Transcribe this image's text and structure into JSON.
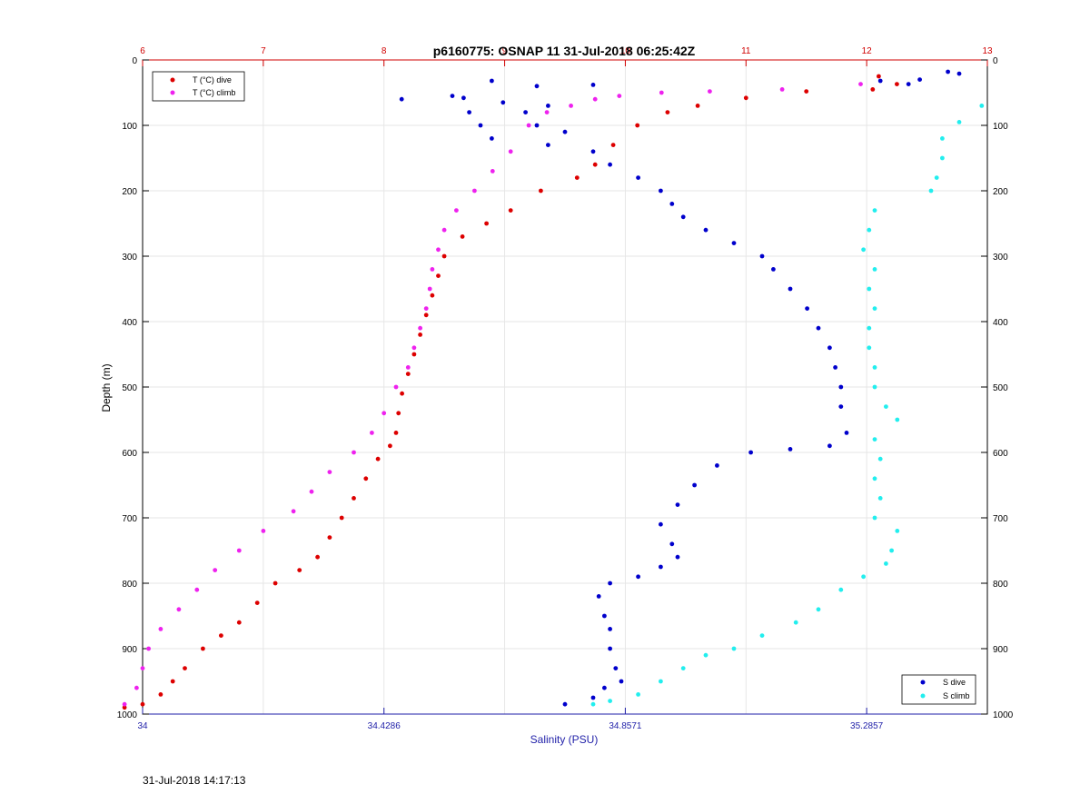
{
  "figure": {
    "timestamp": "31-Jul-2018 14:17:13"
  },
  "chart_data": {
    "type": "scatter",
    "title": "p6160775: OSNAP 11 31-Jul-2018 06:25:42Z",
    "ylabel": "Depth (m)",
    "xlabel_bottom": "Salinity (PSU)",
    "ylim": [
      0,
      1000
    ],
    "y_reversed": true,
    "y_ticks": [
      "0",
      "100",
      "200",
      "300",
      "400",
      "500",
      "600",
      "700",
      "800",
      "900",
      "1000"
    ],
    "x_bottom": {
      "lim": [
        34,
        35.5
      ],
      "ticks": [
        34,
        34.4286,
        34.8571,
        35.2857
      ],
      "tick_labels": [
        "34",
        "34.4286",
        "34.8571",
        "35.2857"
      ],
      "color": "#1f1fa8"
    },
    "x_top": {
      "lim": [
        6,
        13
      ],
      "ticks": [
        6,
        7,
        8,
        9,
        10,
        11,
        12,
        13
      ],
      "tick_labels": [
        "6",
        "7",
        "8",
        "9",
        "10",
        "11",
        "12",
        "13"
      ],
      "color": "#d00000"
    },
    "grid": true,
    "legend_top": {
      "placement": "top-left",
      "entries": [
        {
          "label": "T (°C) dive",
          "color": "#dd0000"
        },
        {
          "label": "T (°C) climb",
          "color": "#ee22ee"
        }
      ]
    },
    "legend_bottom": {
      "placement": "bottom-right",
      "entries": [
        {
          "label": "S dive",
          "color": "#0000cc"
        },
        {
          "label": "S climb",
          "color": "#22eeee"
        }
      ]
    },
    "series": [
      {
        "name": "T (°C) dive",
        "axis": "top",
        "color": "#dd0000",
        "points": [
          [
            12.25,
            37
          ],
          [
            12.1,
            25
          ],
          [
            12.05,
            45
          ],
          [
            11.5,
            48
          ],
          [
            11.0,
            58
          ],
          [
            10.6,
            70
          ],
          [
            10.35,
            80
          ],
          [
            10.1,
            100
          ],
          [
            9.9,
            130
          ],
          [
            9.75,
            160
          ],
          [
            9.6,
            180
          ],
          [
            9.3,
            200
          ],
          [
            9.05,
            230
          ],
          [
            8.85,
            250
          ],
          [
            8.65,
            270
          ],
          [
            8.5,
            300
          ],
          [
            8.45,
            330
          ],
          [
            8.4,
            360
          ],
          [
            8.35,
            390
          ],
          [
            8.3,
            420
          ],
          [
            8.25,
            450
          ],
          [
            8.2,
            480
          ],
          [
            8.15,
            510
          ],
          [
            8.12,
            540
          ],
          [
            8.1,
            570
          ],
          [
            8.05,
            590
          ],
          [
            7.95,
            610
          ],
          [
            7.85,
            640
          ],
          [
            7.75,
            670
          ],
          [
            7.65,
            700
          ],
          [
            7.55,
            730
          ],
          [
            7.45,
            760
          ],
          [
            7.3,
            780
          ],
          [
            7.1,
            800
          ],
          [
            6.95,
            830
          ],
          [
            6.8,
            860
          ],
          [
            6.65,
            880
          ],
          [
            6.5,
            900
          ],
          [
            6.35,
            930
          ],
          [
            6.25,
            950
          ],
          [
            6.15,
            970
          ],
          [
            6.0,
            985
          ],
          [
            5.85,
            990
          ]
        ]
      },
      {
        "name": "T (°C) climb",
        "axis": "top",
        "color": "#ee22ee",
        "points": [
          [
            11.95,
            37
          ],
          [
            11.3,
            45
          ],
          [
            10.7,
            48
          ],
          [
            10.3,
            50
          ],
          [
            9.95,
            55
          ],
          [
            9.75,
            60
          ],
          [
            9.55,
            70
          ],
          [
            9.35,
            80
          ],
          [
            9.2,
            100
          ],
          [
            9.05,
            140
          ],
          [
            8.9,
            170
          ],
          [
            8.75,
            200
          ],
          [
            8.6,
            230
          ],
          [
            8.5,
            260
          ],
          [
            8.45,
            290
          ],
          [
            8.4,
            320
          ],
          [
            8.38,
            350
          ],
          [
            8.35,
            380
          ],
          [
            8.3,
            410
          ],
          [
            8.25,
            440
          ],
          [
            8.2,
            470
          ],
          [
            8.1,
            500
          ],
          [
            8.0,
            540
          ],
          [
            7.9,
            570
          ],
          [
            7.75,
            600
          ],
          [
            7.55,
            630
          ],
          [
            7.4,
            660
          ],
          [
            7.25,
            690
          ],
          [
            7.0,
            720
          ],
          [
            6.8,
            750
          ],
          [
            6.6,
            780
          ],
          [
            6.45,
            810
          ],
          [
            6.3,
            840
          ],
          [
            6.15,
            870
          ],
          [
            6.05,
            900
          ],
          [
            6.0,
            930
          ],
          [
            5.95,
            960
          ],
          [
            5.85,
            985
          ]
        ]
      },
      {
        "name": "S dive",
        "axis": "bottom",
        "color": "#0000cc",
        "points": [
          [
            35.43,
            18
          ],
          [
            35.45,
            21
          ],
          [
            35.38,
            30
          ],
          [
            35.31,
            32
          ],
          [
            35.36,
            37
          ],
          [
            34.62,
            32
          ],
          [
            34.7,
            40
          ],
          [
            34.8,
            38
          ],
          [
            34.46,
            60
          ],
          [
            34.55,
            55
          ],
          [
            34.57,
            58
          ],
          [
            34.64,
            65
          ],
          [
            34.58,
            80
          ],
          [
            34.68,
            80
          ],
          [
            34.72,
            70
          ],
          [
            34.6,
            100
          ],
          [
            34.7,
            100
          ],
          [
            34.75,
            110
          ],
          [
            34.62,
            120
          ],
          [
            34.72,
            130
          ],
          [
            34.8,
            140
          ],
          [
            34.83,
            160
          ],
          [
            34.88,
            180
          ],
          [
            34.92,
            200
          ],
          [
            34.94,
            220
          ],
          [
            34.96,
            240
          ],
          [
            35.0,
            260
          ],
          [
            35.05,
            280
          ],
          [
            35.1,
            300
          ],
          [
            35.12,
            320
          ],
          [
            35.15,
            350
          ],
          [
            35.18,
            380
          ],
          [
            35.2,
            410
          ],
          [
            35.22,
            440
          ],
          [
            35.23,
            470
          ],
          [
            35.24,
            500
          ],
          [
            35.24,
            530
          ],
          [
            35.25,
            570
          ],
          [
            35.22,
            590
          ],
          [
            35.15,
            595
          ],
          [
            35.08,
            600
          ],
          [
            35.02,
            620
          ],
          [
            34.98,
            650
          ],
          [
            34.95,
            680
          ],
          [
            34.92,
            710
          ],
          [
            34.94,
            740
          ],
          [
            34.95,
            760
          ],
          [
            34.92,
            775
          ],
          [
            34.88,
            790
          ],
          [
            34.83,
            800
          ],
          [
            34.81,
            820
          ],
          [
            34.82,
            850
          ],
          [
            34.83,
            870
          ],
          [
            34.83,
            900
          ],
          [
            34.84,
            930
          ],
          [
            34.85,
            950
          ],
          [
            34.82,
            960
          ],
          [
            34.8,
            975
          ],
          [
            34.75,
            985
          ]
        ]
      },
      {
        "name": "S climb",
        "axis": "bottom",
        "color": "#22eeee",
        "points": [
          [
            35.49,
            70
          ],
          [
            35.45,
            95
          ],
          [
            35.42,
            120
          ],
          [
            35.42,
            150
          ],
          [
            35.41,
            180
          ],
          [
            35.4,
            200
          ],
          [
            35.3,
            230
          ],
          [
            35.29,
            260
          ],
          [
            35.28,
            290
          ],
          [
            35.3,
            320
          ],
          [
            35.29,
            350
          ],
          [
            35.3,
            380
          ],
          [
            35.29,
            410
          ],
          [
            35.29,
            440
          ],
          [
            35.3,
            470
          ],
          [
            35.3,
            500
          ],
          [
            35.32,
            530
          ],
          [
            35.34,
            550
          ],
          [
            35.3,
            580
          ],
          [
            35.31,
            610
          ],
          [
            35.3,
            640
          ],
          [
            35.31,
            670
          ],
          [
            35.3,
            700
          ],
          [
            35.34,
            720
          ],
          [
            35.33,
            750
          ],
          [
            35.32,
            770
          ],
          [
            35.28,
            790
          ],
          [
            35.24,
            810
          ],
          [
            35.2,
            840
          ],
          [
            35.16,
            860
          ],
          [
            35.1,
            880
          ],
          [
            35.05,
            900
          ],
          [
            35.0,
            910
          ],
          [
            34.96,
            930
          ],
          [
            34.92,
            950
          ],
          [
            34.88,
            970
          ],
          [
            34.83,
            980
          ],
          [
            34.8,
            985
          ]
        ]
      }
    ]
  }
}
